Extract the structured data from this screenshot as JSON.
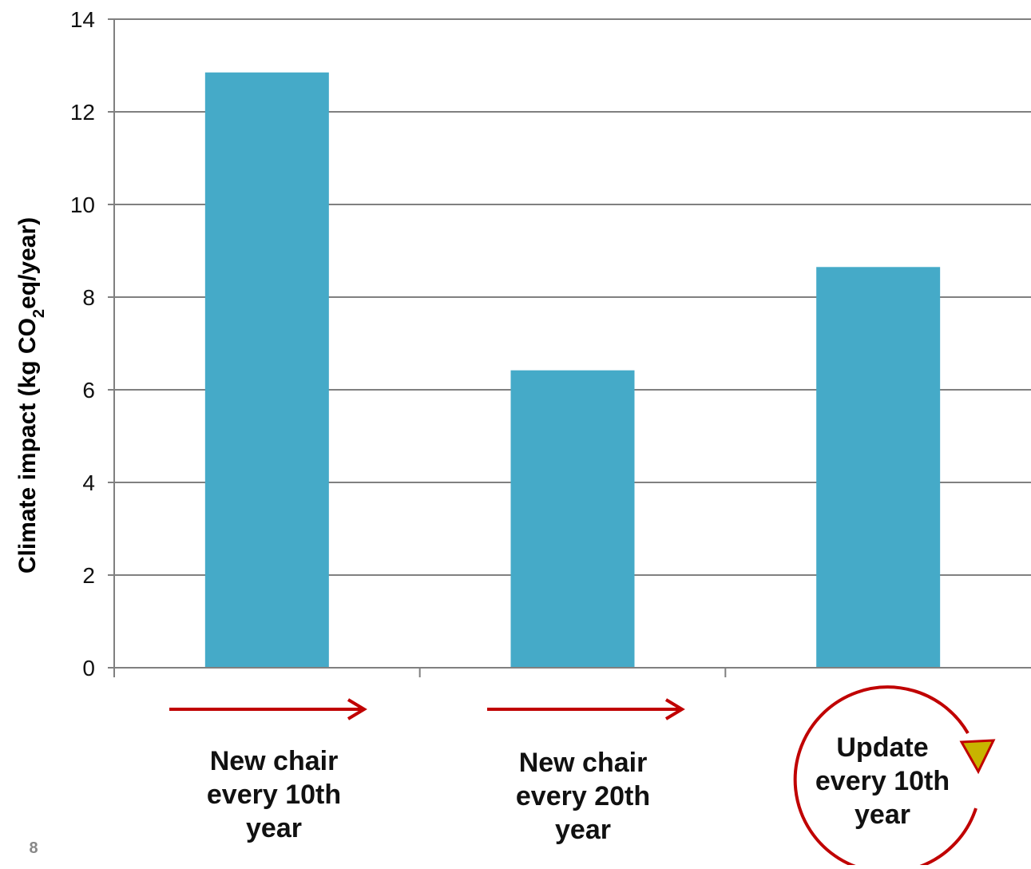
{
  "chart_data": {
    "type": "bar",
    "categories": [
      [
        "New chair",
        "every 10th",
        "year"
      ],
      [
        "New chair",
        "every 20th",
        "year"
      ],
      [
        "Update",
        "every 10th",
        "year"
      ]
    ],
    "values": [
      12.85,
      6.42,
      8.65
    ],
    "ylabel_main": "Climate impact (kg CO",
    "ylabel_sub": "2",
    "ylabel_end": "eq/year)",
    "ylim": [
      0,
      14
    ],
    "yticks": [
      0,
      2,
      4,
      6,
      8,
      10,
      12,
      14
    ],
    "grid": true
  },
  "page_number": "8",
  "colors": {
    "bar": "#45aac8",
    "grid": "#808080",
    "arrow": "#c00000",
    "arrowhead_fill": "#c8b400"
  },
  "icons": [
    "right-arrow-icon",
    "right-arrow-icon",
    "circular-arrow-icon"
  ]
}
